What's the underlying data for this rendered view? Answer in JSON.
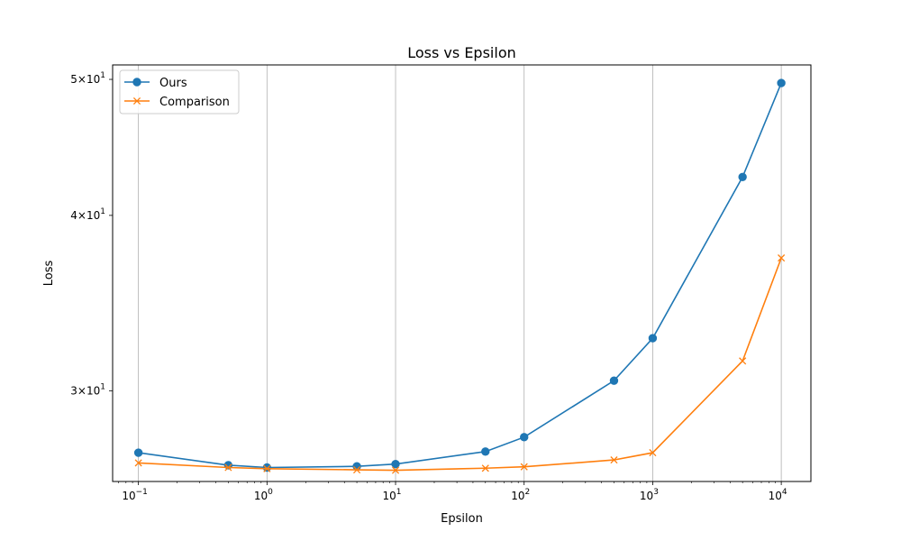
{
  "chart_data": {
    "type": "line",
    "title": "Loss vs Epsilon",
    "xlabel": "Epsilon",
    "ylabel": "Loss",
    "xscale": "log",
    "yscale": "log",
    "xlim": [
      0.063,
      17000
    ],
    "ylim": [
      25.85,
      51.2
    ],
    "grid": "x-major",
    "legend_position": "top-left",
    "x_ticks": [
      {
        "value": 0.1,
        "base": "10",
        "exp": "−1"
      },
      {
        "value": 1,
        "base": "10",
        "exp": "0"
      },
      {
        "value": 10,
        "base": "10",
        "exp": "1"
      },
      {
        "value": 100,
        "base": "10",
        "exp": "2"
      },
      {
        "value": 1000,
        "base": "10",
        "exp": "3"
      },
      {
        "value": 10000,
        "base": "10",
        "exp": "4"
      }
    ],
    "y_ticks": [
      {
        "value": 30,
        "mant": "3",
        "base": "10",
        "exp": "1"
      },
      {
        "value": 40,
        "mant": "4",
        "base": "10",
        "exp": "1"
      },
      {
        "value": 50,
        "mant": "5",
        "base": "10",
        "exp": "1"
      }
    ],
    "x": [
      0.1,
      0.5,
      1,
      5,
      10,
      50,
      100,
      500,
      1000,
      5000,
      10000
    ],
    "series": [
      {
        "name": "Ours",
        "color": "#1f77b4",
        "marker": "circle",
        "values": [
          27.1,
          26.55,
          26.45,
          26.5,
          26.6,
          27.15,
          27.8,
          30.5,
          32.7,
          42.6,
          49.7
        ]
      },
      {
        "name": "Comparison",
        "color": "#ff7f0e",
        "marker": "x",
        "values": [
          26.65,
          26.45,
          26.4,
          26.35,
          26.33,
          26.42,
          26.48,
          26.78,
          27.1,
          31.5,
          37.3
        ]
      }
    ]
  }
}
